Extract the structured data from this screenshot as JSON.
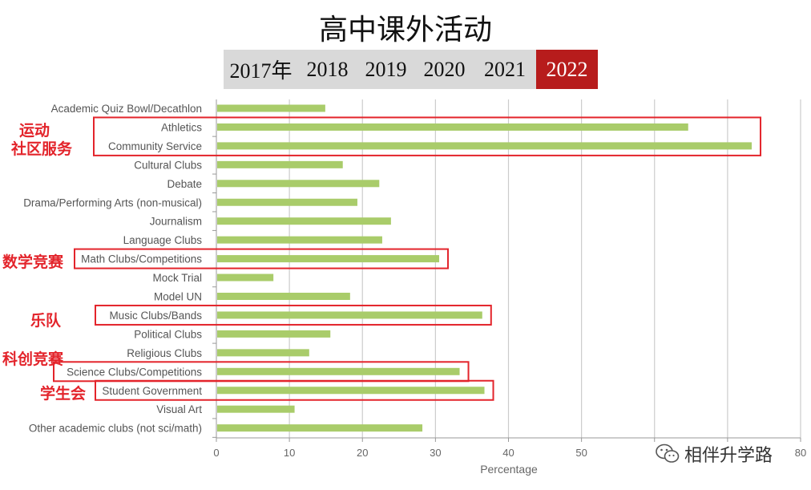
{
  "title": "高中课外活动",
  "year_tabs": [
    {
      "label": "2017年",
      "active": false
    },
    {
      "label": "2018",
      "active": false
    },
    {
      "label": "2019",
      "active": false
    },
    {
      "label": "2020",
      "active": false
    },
    {
      "label": "2021",
      "active": false
    },
    {
      "label": "2022",
      "active": true
    }
  ],
  "colors": {
    "bar": "#a9cc6a",
    "highlight": "#e3242b",
    "active_tab": "#b71c1c",
    "tab_bg": "#d9d9d9"
  },
  "annotations": [
    {
      "text": "运动",
      "category": "Athletics"
    },
    {
      "text": "社区服务",
      "category": "Community Service"
    },
    {
      "text": "数学竞赛",
      "category": "Math Clubs/Competitions"
    },
    {
      "text": "乐队",
      "category": "Music Clubs/Bands"
    },
    {
      "text": "科创竞赛",
      "category": "Science Clubs/Competitions"
    },
    {
      "text": "学生会",
      "category": "Student Government"
    }
  ],
  "watermark": {
    "text": "相伴升学路",
    "icon": "wechat-icon"
  },
  "chart_data": {
    "type": "bar",
    "orientation": "horizontal",
    "xlabel": "Percentage",
    "ylabel": "",
    "xlim": [
      0,
      80
    ],
    "xticks": [
      0,
      10,
      20,
      30,
      40,
      50,
      60,
      70,
      80
    ],
    "xtick_labels": [
      "0",
      "10",
      "20",
      "30",
      "40",
      "50",
      "",
      "",
      "80"
    ],
    "grid": true,
    "categories": [
      "Academic Quiz Bowl/Decathlon",
      "Athletics",
      "Community Service",
      "Cultural Clubs",
      "Debate",
      "Drama/Performing Arts (non-musical)",
      "Journalism",
      "Language Clubs",
      "Math Clubs/Competitions",
      "Mock Trial",
      "Model UN",
      "Music Clubs/Bands",
      "Political Clubs",
      "Religious Clubs",
      "Science Clubs/Competitions",
      "Student Government",
      "Visual Art",
      "Other academic clubs (not sci/math)"
    ],
    "values": [
      14.8,
      64.5,
      73.2,
      17.2,
      22.2,
      19.2,
      23.8,
      22.6,
      30.4,
      7.7,
      18.2,
      36.3,
      15.5,
      12.6,
      33.2,
      36.6,
      10.6,
      28.1
    ],
    "highlighted": [
      [
        "Athletics",
        "Community Service"
      ],
      [
        "Math Clubs/Competitions"
      ],
      [
        "Music Clubs/Bands"
      ],
      [
        "Science Clubs/Competitions"
      ],
      [
        "Student Government"
      ]
    ]
  }
}
